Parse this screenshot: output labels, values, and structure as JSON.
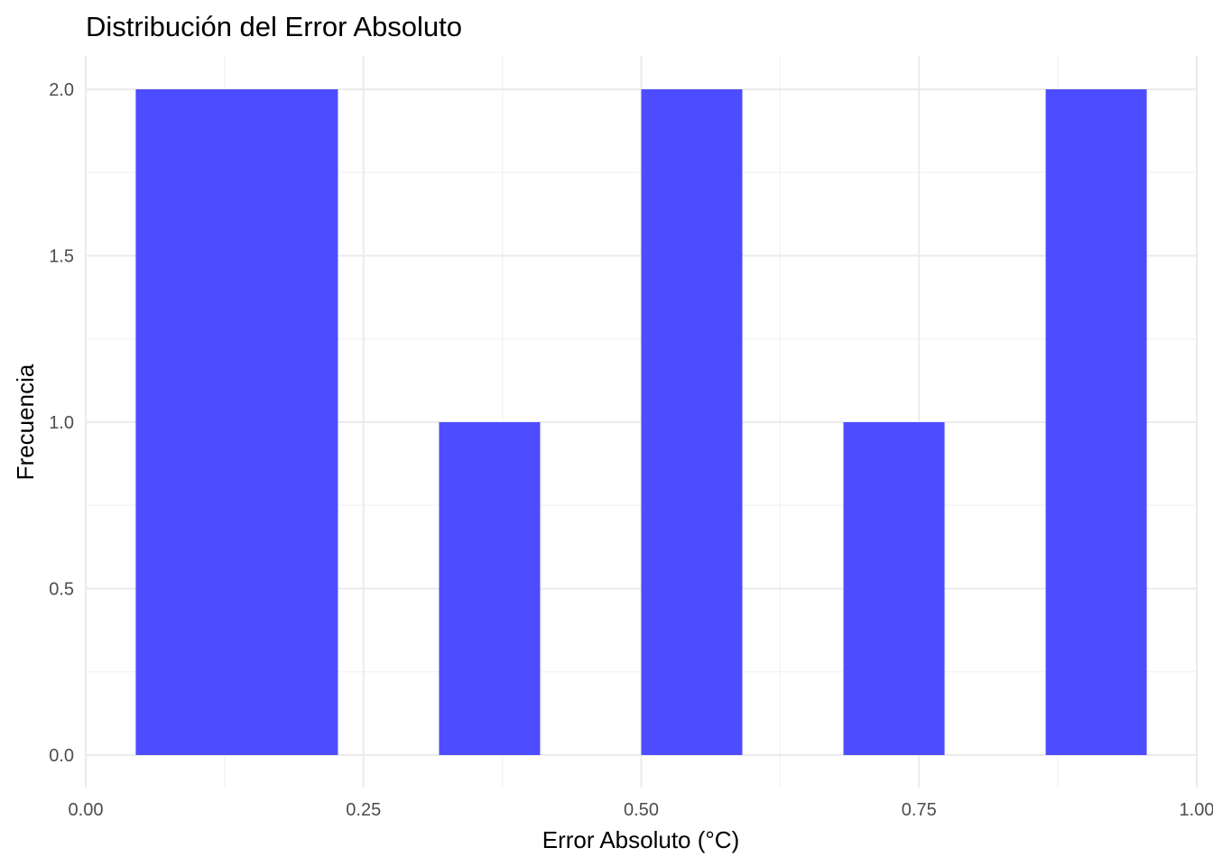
{
  "chart_data": {
    "type": "bar",
    "title": "Distribución del Error Absoluto",
    "xlabel": "Error Absoluto (°C)",
    "ylabel": "Frecuencia",
    "xlim": [
      0,
      1
    ],
    "ylim": [
      0,
      2
    ],
    "x_ticks": [
      0,
      0.25,
      0.5,
      0.75,
      1
    ],
    "x_tick_labels": [
      "0.00",
      "0.25",
      "0.50",
      "0.75",
      "1.00"
    ],
    "y_ticks": [
      0,
      0.5,
      1,
      1.5,
      2
    ],
    "y_tick_labels": [
      "0.0",
      "0.5",
      "1.0",
      "1.5",
      "2.0"
    ],
    "bins": [
      {
        "x0": 0.045,
        "x1": 0.227,
        "count": 2
      },
      {
        "x0": 0.318,
        "x1": 0.409,
        "count": 1
      },
      {
        "x0": 0.5,
        "x1": 0.591,
        "count": 2
      },
      {
        "x0": 0.682,
        "x1": 0.773,
        "count": 1
      },
      {
        "x0": 0.864,
        "x1": 0.955,
        "count": 2
      }
    ],
    "bar_color": "#4d4dff",
    "grid": true,
    "legend": "none"
  }
}
